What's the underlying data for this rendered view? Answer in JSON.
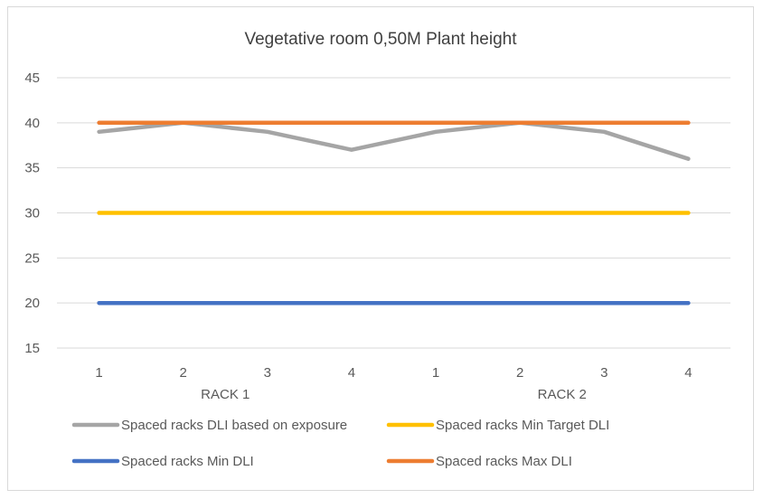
{
  "chart_data": {
    "type": "line",
    "title": "Vegetative room 0,50M Plant height",
    "categories": [
      "1",
      "2",
      "3",
      "4",
      "1",
      "2",
      "3",
      "4"
    ],
    "groups": [
      {
        "label": "RACK 1",
        "start": 0,
        "end": 3
      },
      {
        "label": "RACK 2",
        "start": 4,
        "end": 7
      }
    ],
    "ylim": [
      15,
      45
    ],
    "yticks": [
      15,
      20,
      25,
      30,
      35,
      40,
      45
    ],
    "grid": true,
    "legend_position": "bottom",
    "series": [
      {
        "name": "Spaced racks DLI based on exposure",
        "color": "#a5a5a5",
        "values": [
          39,
          40,
          39,
          37,
          39,
          40,
          39,
          36
        ]
      },
      {
        "name": "Spaced racks Min Target DLI",
        "color": "#ffc000",
        "values": [
          30,
          30,
          30,
          30,
          30,
          30,
          30,
          30
        ]
      },
      {
        "name": "Spaced racks Min DLI",
        "color": "#4472c4",
        "values": [
          20,
          20,
          20,
          20,
          20,
          20,
          20,
          20
        ]
      },
      {
        "name": "Spaced racks Max DLI",
        "color": "#ed7d31",
        "values": [
          40,
          40,
          40,
          40,
          40,
          40,
          40,
          40
        ]
      }
    ]
  }
}
